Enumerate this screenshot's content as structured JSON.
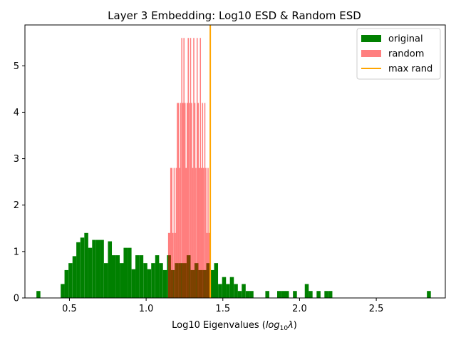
{
  "chart_data": {
    "type": "histogram",
    "title": "Layer 3 Embedding: Log10 ESD & Random ESD",
    "xlabel_prefix": "Log10 Eigenvalues (",
    "xlabel_math": "log",
    "xlabel_sub": "10",
    "xlabel_lambda": "λ",
    "xlabel_suffix": ")",
    "ylabel": "",
    "xlim": [
      0.21,
      2.95
    ],
    "ylim": [
      0,
      5.88
    ],
    "xticks": [
      0.5,
      1.0,
      1.5,
      2.0,
      2.5
    ],
    "xtick_labels": [
      "0.5",
      "1.0",
      "1.5",
      "2.0",
      "2.5"
    ],
    "yticks": [
      0,
      1,
      2,
      3,
      4,
      5
    ],
    "ytick_labels": [
      "0",
      "1",
      "2",
      "3",
      "4",
      "5"
    ],
    "legend_position": "upper right",
    "series": [
      {
        "name": "original",
        "kind": "bars",
        "color": "#008000",
        "bar_width": 0.0257,
        "bins": [
          {
            "x": 0.285,
            "h": 0.15
          },
          {
            "x": 0.443,
            "h": 0.3
          },
          {
            "x": 0.468,
            "h": 0.6
          },
          {
            "x": 0.494,
            "h": 0.75
          },
          {
            "x": 0.52,
            "h": 0.9
          },
          {
            "x": 0.545,
            "h": 1.2
          },
          {
            "x": 0.571,
            "h": 1.3
          },
          {
            "x": 0.597,
            "h": 1.4
          },
          {
            "x": 0.622,
            "h": 1.08
          },
          {
            "x": 0.648,
            "h": 1.25
          },
          {
            "x": 0.674,
            "h": 1.25
          },
          {
            "x": 0.699,
            "h": 1.25
          },
          {
            "x": 0.725,
            "h": 0.75
          },
          {
            "x": 0.751,
            "h": 1.22
          },
          {
            "x": 0.776,
            "h": 0.92
          },
          {
            "x": 0.802,
            "h": 0.92
          },
          {
            "x": 0.828,
            "h": 0.75
          },
          {
            "x": 0.853,
            "h": 1.08
          },
          {
            "x": 0.879,
            "h": 1.08
          },
          {
            "x": 0.905,
            "h": 0.62
          },
          {
            "x": 0.93,
            "h": 0.92
          },
          {
            "x": 0.956,
            "h": 0.92
          },
          {
            "x": 0.982,
            "h": 0.75
          },
          {
            "x": 1.007,
            "h": 0.62
          },
          {
            "x": 1.033,
            "h": 0.75
          },
          {
            "x": 1.059,
            "h": 0.92
          },
          {
            "x": 1.084,
            "h": 0.75
          },
          {
            "x": 1.11,
            "h": 0.6
          },
          {
            "x": 1.136,
            "h": 0.92
          },
          {
            "x": 1.161,
            "h": 0.6
          },
          {
            "x": 1.187,
            "h": 0.75
          },
          {
            "x": 1.213,
            "h": 0.75
          },
          {
            "x": 1.238,
            "h": 0.75
          },
          {
            "x": 1.264,
            "h": 0.92
          },
          {
            "x": 1.29,
            "h": 0.6
          },
          {
            "x": 1.315,
            "h": 0.75
          },
          {
            "x": 1.341,
            "h": 0.6
          },
          {
            "x": 1.367,
            "h": 0.6
          },
          {
            "x": 1.392,
            "h": 0.75
          },
          {
            "x": 1.418,
            "h": 0.6
          },
          {
            "x": 1.443,
            "h": 0.75
          },
          {
            "x": 1.469,
            "h": 0.3
          },
          {
            "x": 1.495,
            "h": 0.45
          },
          {
            "x": 1.52,
            "h": 0.3
          },
          {
            "x": 1.546,
            "h": 0.45
          },
          {
            "x": 1.572,
            "h": 0.3
          },
          {
            "x": 1.597,
            "h": 0.15
          },
          {
            "x": 1.623,
            "h": 0.3
          },
          {
            "x": 1.649,
            "h": 0.15
          },
          {
            "x": 1.674,
            "h": 0.15
          },
          {
            "x": 1.777,
            "h": 0.15
          },
          {
            "x": 1.854,
            "h": 0.15
          },
          {
            "x": 1.88,
            "h": 0.15
          },
          {
            "x": 1.905,
            "h": 0.15
          },
          {
            "x": 1.957,
            "h": 0.15
          },
          {
            "x": 2.034,
            "h": 0.3
          },
          {
            "x": 2.059,
            "h": 0.15
          },
          {
            "x": 2.111,
            "h": 0.15
          },
          {
            "x": 2.162,
            "h": 0.15
          },
          {
            "x": 2.188,
            "h": 0.15
          },
          {
            "x": 2.83,
            "h": 0.15
          }
        ]
      },
      {
        "name": "random",
        "kind": "bars",
        "color": "#ff0000",
        "alpha": 0.5,
        "bar_width": 0.00715,
        "bins": [
          {
            "x": 1.143,
            "h": 1.4
          },
          {
            "x": 1.15,
            "h": 1.4
          },
          {
            "x": 1.157,
            "h": 2.8
          },
          {
            "x": 1.164,
            "h": 2.8
          },
          {
            "x": 1.171,
            "h": 1.4
          },
          {
            "x": 1.179,
            "h": 2.8
          },
          {
            "x": 1.186,
            "h": 1.4
          },
          {
            "x": 1.193,
            "h": 2.8
          },
          {
            "x": 1.2,
            "h": 4.2
          },
          {
            "x": 1.207,
            "h": 4.2
          },
          {
            "x": 1.214,
            "h": 2.8
          },
          {
            "x": 1.221,
            "h": 4.2
          },
          {
            "x": 1.229,
            "h": 5.6
          },
          {
            "x": 1.236,
            "h": 4.2
          },
          {
            "x": 1.243,
            "h": 5.6
          },
          {
            "x": 1.25,
            "h": 4.2
          },
          {
            "x": 1.257,
            "h": 2.8
          },
          {
            "x": 1.264,
            "h": 4.2
          },
          {
            "x": 1.271,
            "h": 5.6
          },
          {
            "x": 1.279,
            "h": 4.2
          },
          {
            "x": 1.286,
            "h": 5.6
          },
          {
            "x": 1.293,
            "h": 4.2
          },
          {
            "x": 1.3,
            "h": 2.8
          },
          {
            "x": 1.307,
            "h": 5.6
          },
          {
            "x": 1.314,
            "h": 4.2
          },
          {
            "x": 1.321,
            "h": 2.8
          },
          {
            "x": 1.329,
            "h": 5.6
          },
          {
            "x": 1.336,
            "h": 4.2
          },
          {
            "x": 1.343,
            "h": 2.8
          },
          {
            "x": 1.35,
            "h": 5.6
          },
          {
            "x": 1.357,
            "h": 2.8
          },
          {
            "x": 1.364,
            "h": 4.2
          },
          {
            "x": 1.371,
            "h": 2.8
          },
          {
            "x": 1.379,
            "h": 4.2
          },
          {
            "x": 1.386,
            "h": 2.8
          },
          {
            "x": 1.393,
            "h": 1.4
          },
          {
            "x": 1.4,
            "h": 2.8
          },
          {
            "x": 1.407,
            "h": 1.4
          },
          {
            "x": 1.414,
            "h": 1.4
          }
        ]
      },
      {
        "name": "max rand",
        "kind": "vline",
        "color": "#ffa500",
        "x": 1.418
      }
    ]
  }
}
